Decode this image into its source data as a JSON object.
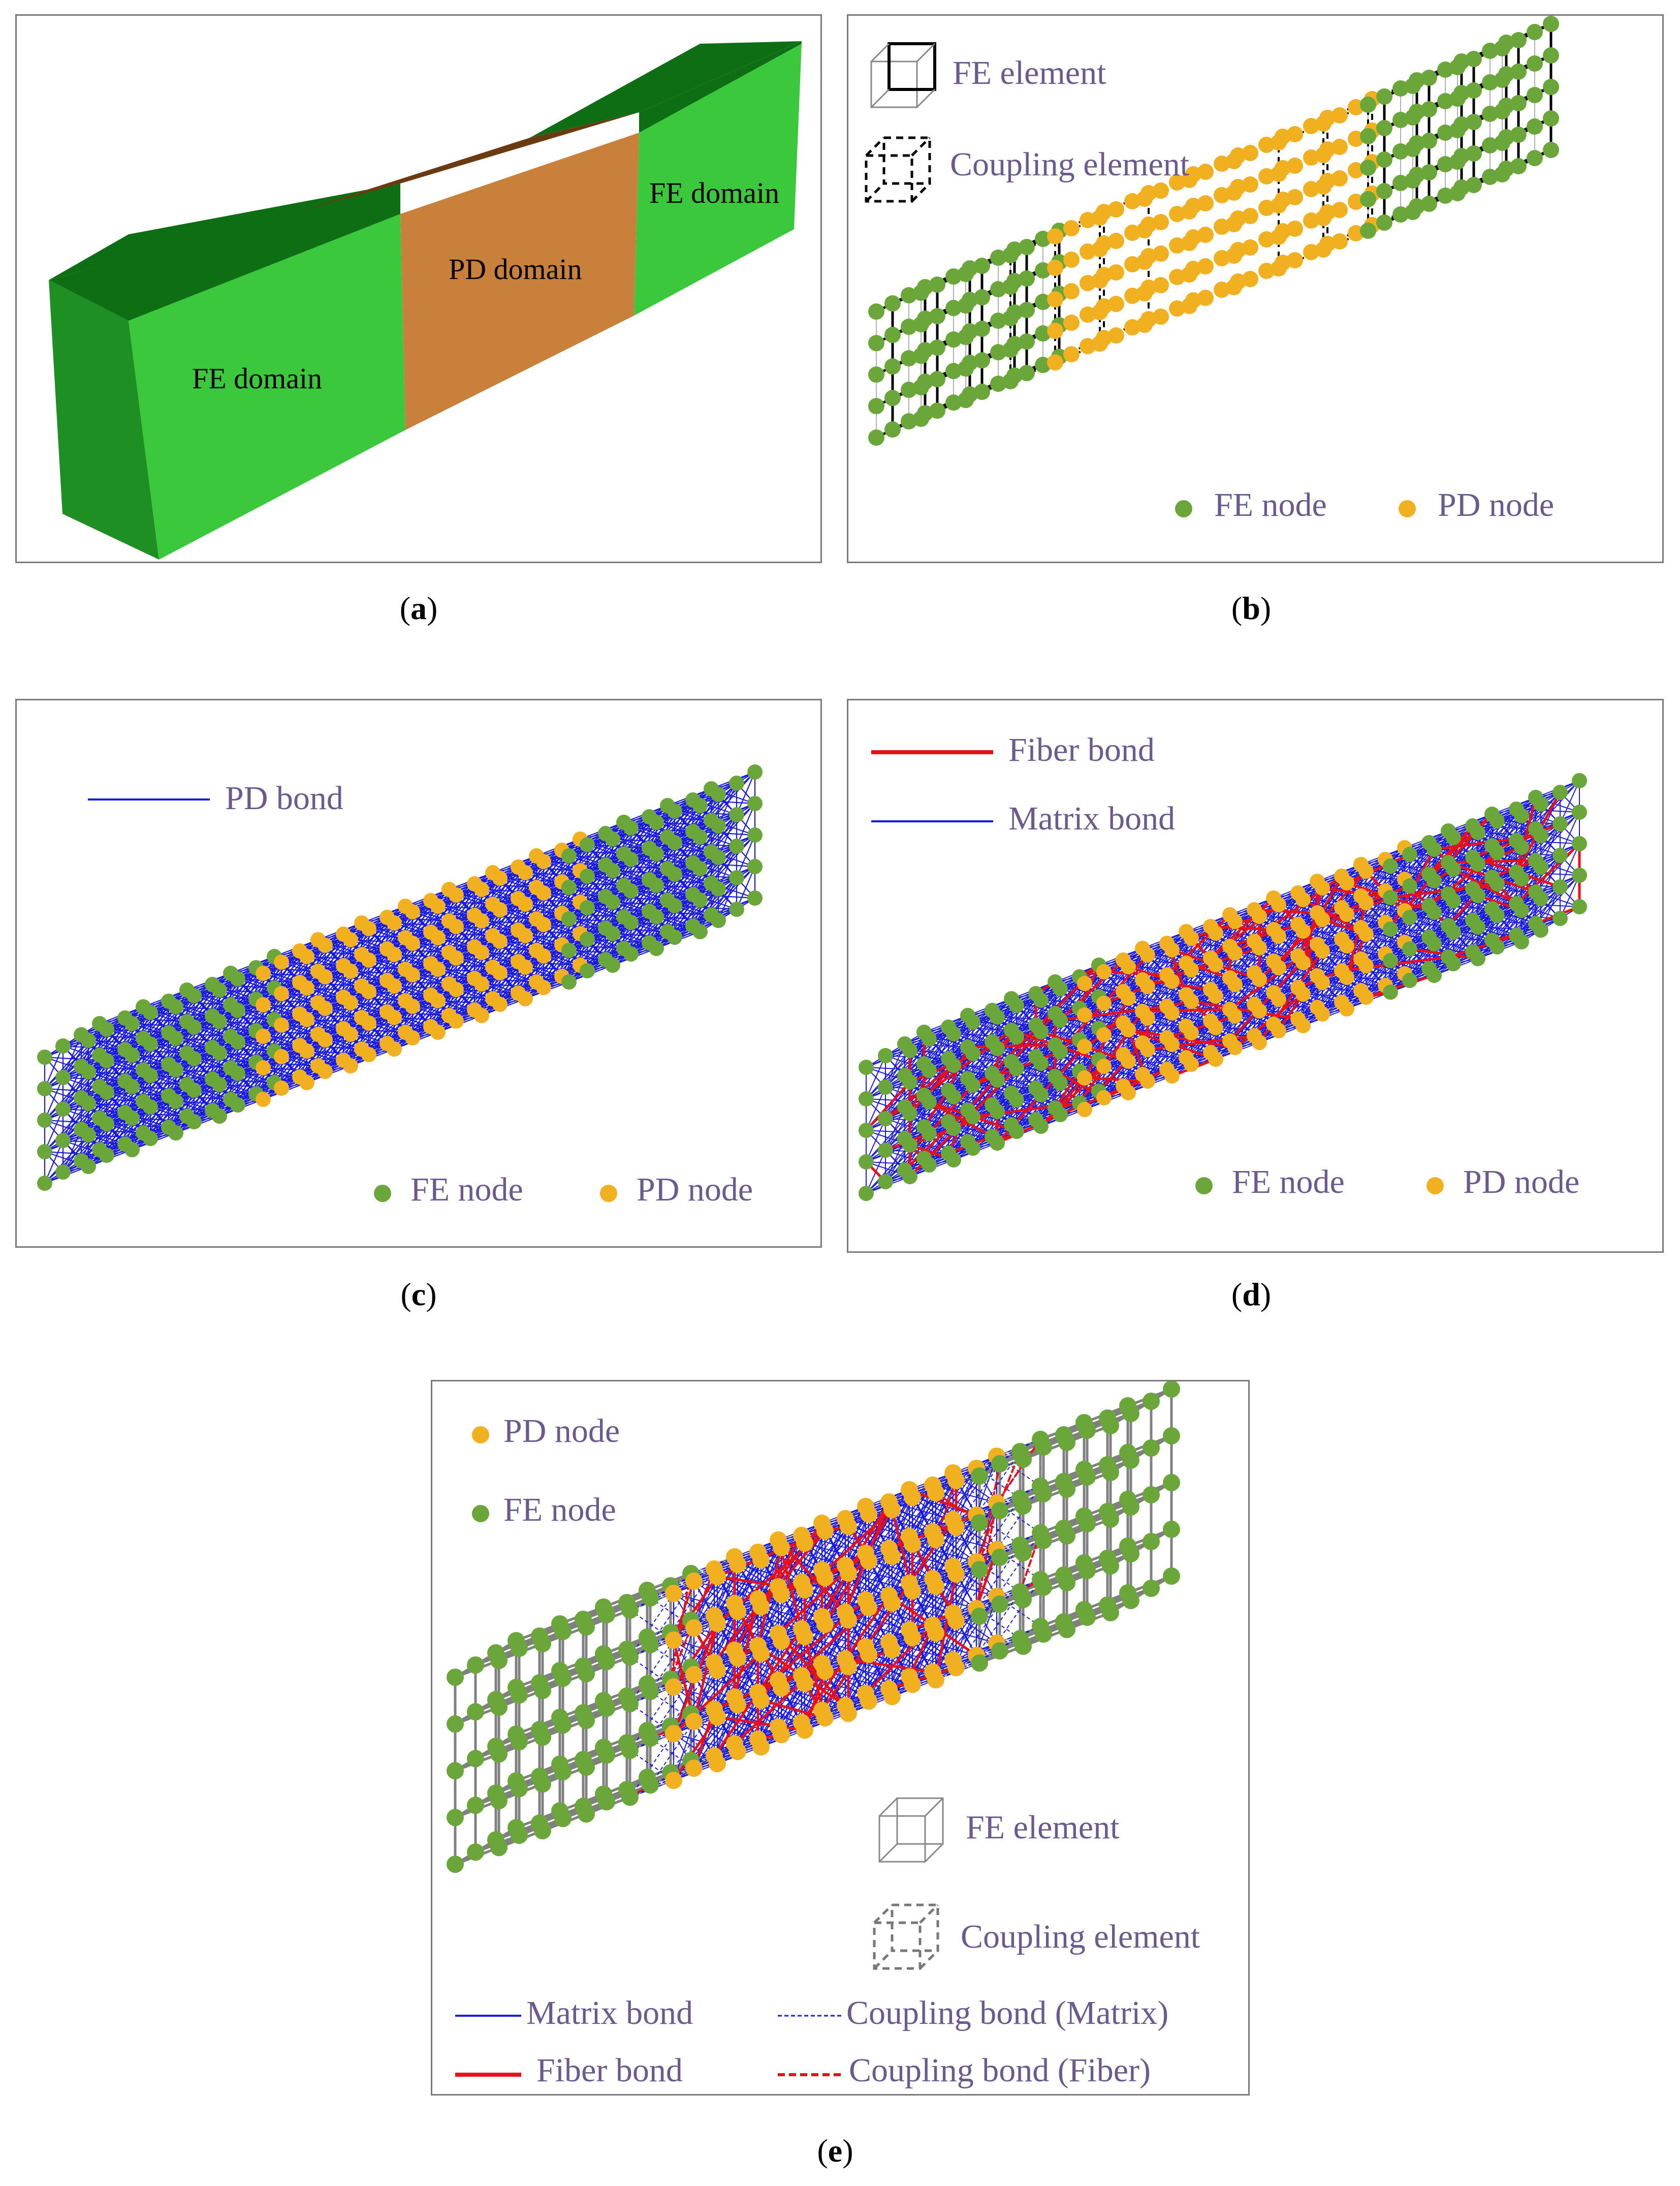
{
  "colors": {
    "fe_node": "#6aa63a",
    "pd_node": "#f0b020",
    "pd_bond": "#1a1adf",
    "fiber_bond": "#e8101a",
    "fe_green_front": "#3cc83c",
    "fe_green_top": "#0e6e14",
    "fe_green_side": "#1e8f22",
    "pd_front": "#c8803a",
    "pd_top": "#6b3a10",
    "legend_text": "#6a5a8e",
    "fe_grid": "#808080"
  },
  "panel_a": {
    "caption_letter": "a",
    "labels": {
      "fe_left": "FE domain",
      "pd": "PD domain",
      "fe_right": "FE domain"
    }
  },
  "panel_b": {
    "caption_letter": "b",
    "legend": {
      "fe_element": "FE element",
      "coupling_element": "Coupling element",
      "fe_node": "FE node",
      "pd_node": "PD node"
    }
  },
  "panel_c": {
    "caption_letter": "c",
    "legend": {
      "pd_bond": "PD bond",
      "fe_node": "FE node",
      "pd_node": "PD node"
    }
  },
  "panel_d": {
    "caption_letter": "d",
    "legend": {
      "fiber_bond": "Fiber bond",
      "matrix_bond": "Matrix bond",
      "fe_node": "FE node",
      "pd_node": "PD node"
    }
  },
  "panel_e": {
    "caption_letter": "e",
    "legend": {
      "pd_node": "PD node",
      "fe_node": "FE node",
      "fe_element": "FE element",
      "coupling_element": "Coupling element",
      "matrix_bond": "Matrix bond",
      "coupling_bond_matrix": "Coupling bond (Matrix)",
      "fiber_bond": "Fiber bond",
      "coupling_bond_fiber": "Coupling bond (Fiber)"
    }
  }
}
